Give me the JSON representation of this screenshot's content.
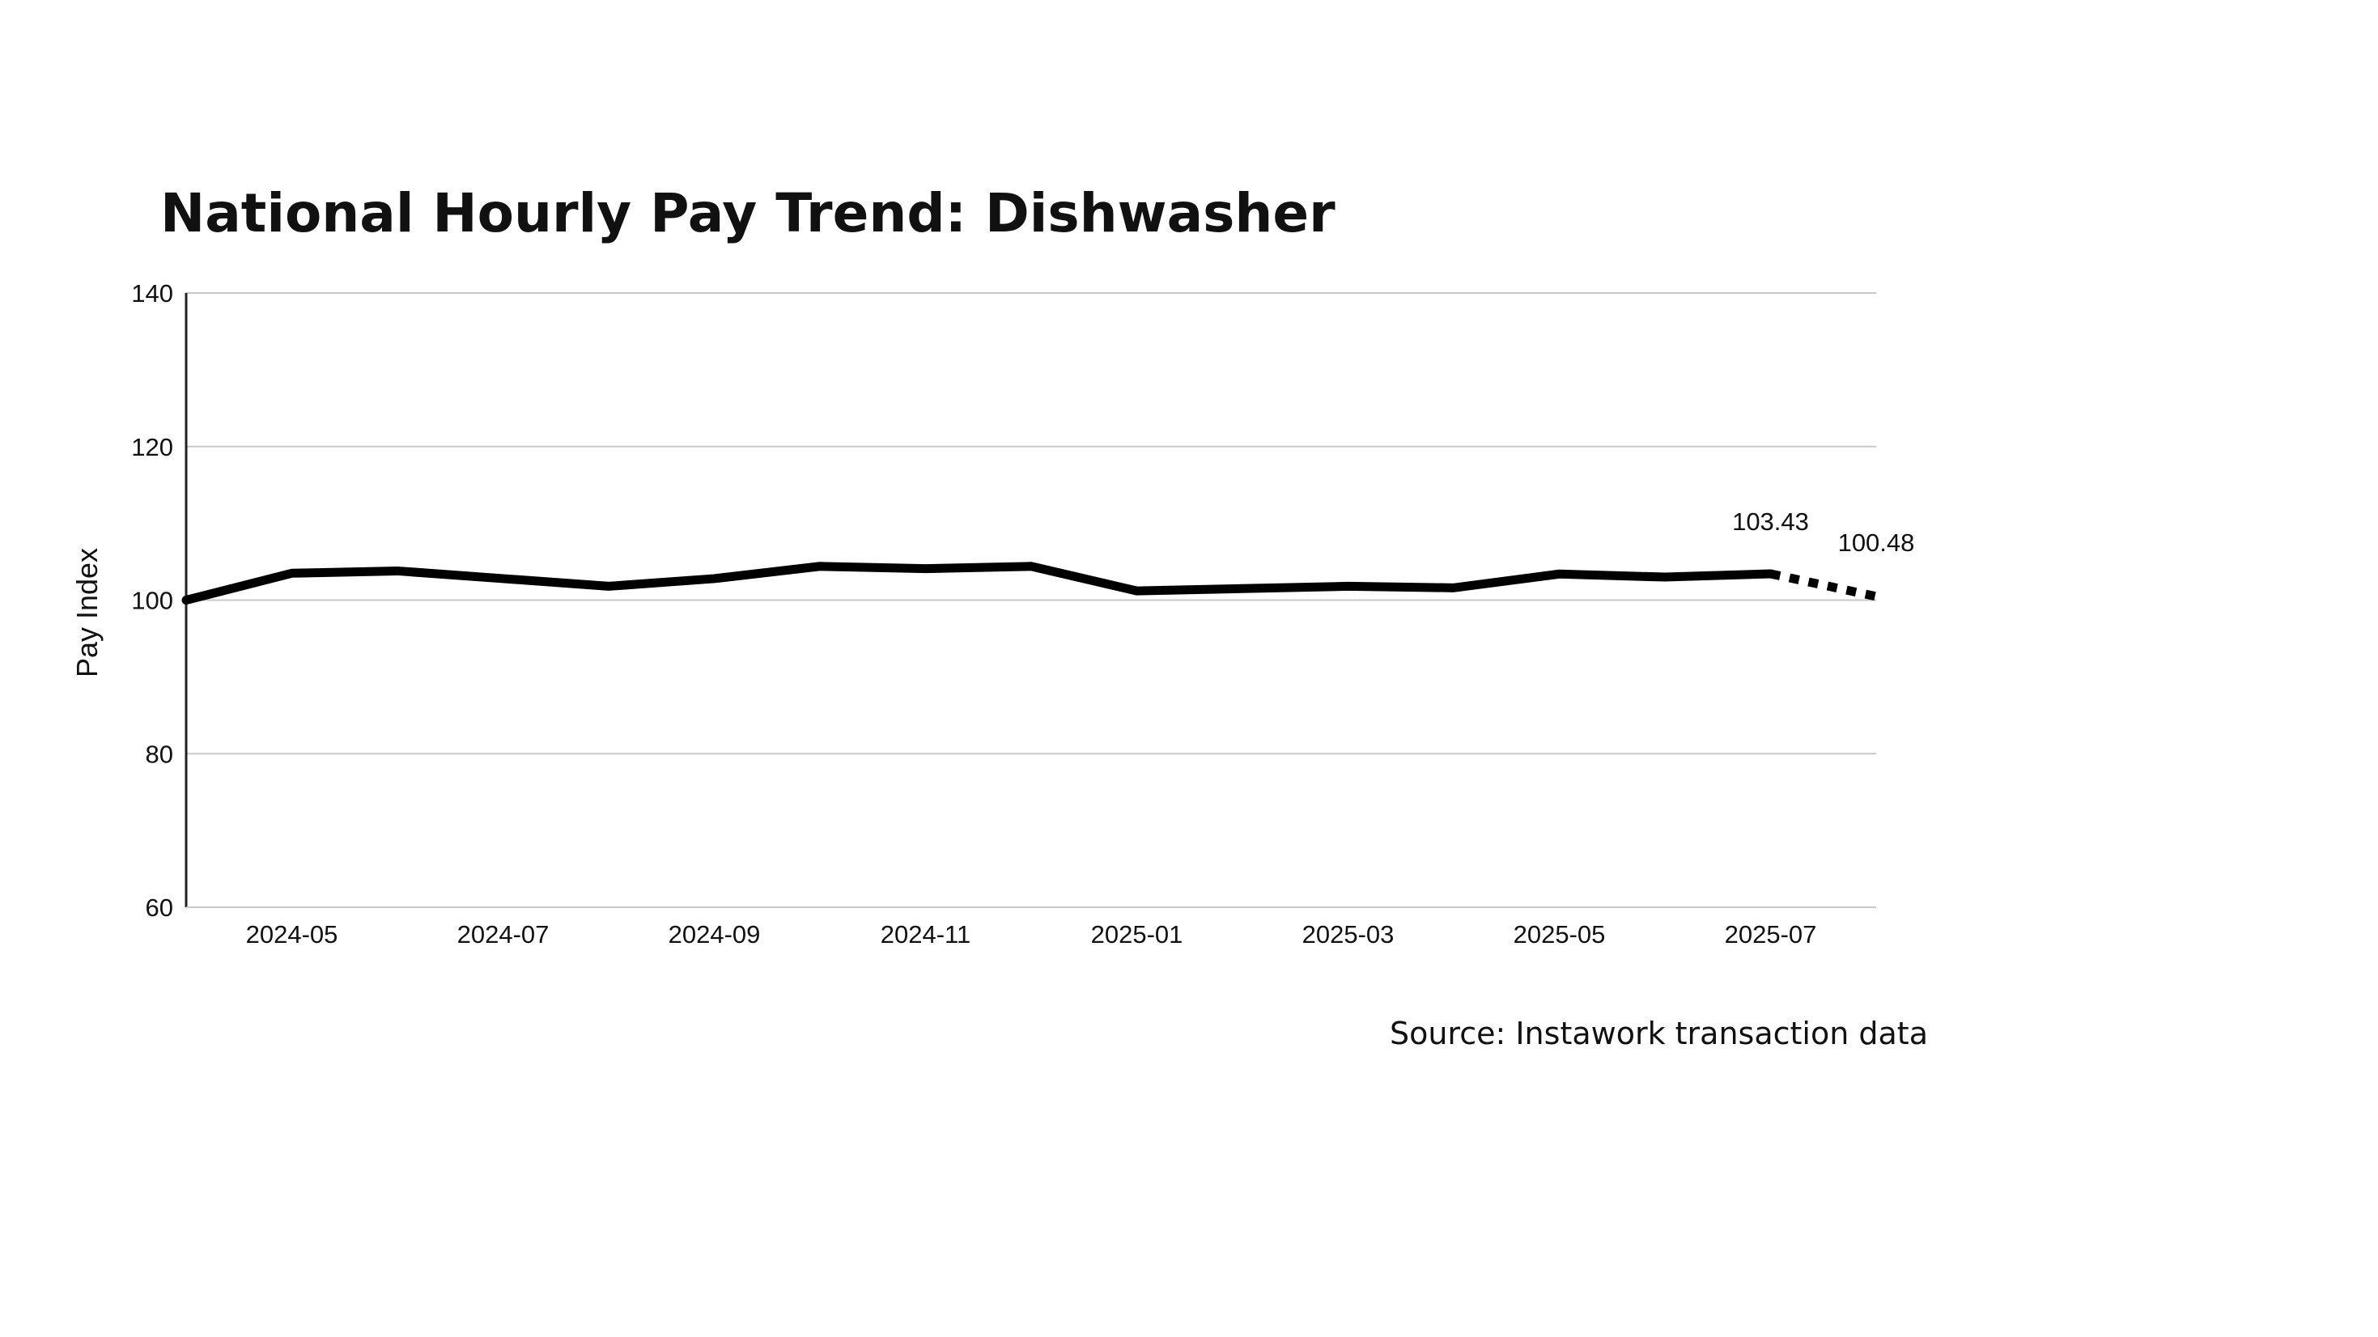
{
  "chart_data": {
    "type": "line",
    "title": "National Hourly Pay Trend: Dishwasher",
    "ylabel": "Pay Index",
    "xlabel": "",
    "ylim": [
      60,
      140
    ],
    "yticks": [
      60,
      80,
      100,
      120,
      140
    ],
    "grid": true,
    "x": [
      "2024-04",
      "2024-05",
      "2024-06",
      "2024-07",
      "2024-08",
      "2024-09",
      "2024-10",
      "2024-11",
      "2024-12",
      "2025-01",
      "2025-02",
      "2025-03",
      "2025-04",
      "2025-05",
      "2025-06",
      "2025-07",
      "2025-08"
    ],
    "xtick_labels": [
      "2024-05",
      "2024-07",
      "2024-09",
      "2024-11",
      "2025-01",
      "2025-03",
      "2025-05",
      "2025-07"
    ],
    "series": [
      {
        "values": [
          100.0,
          103.5,
          103.8,
          102.8,
          101.8,
          102.8,
          104.4,
          104.1,
          104.4,
          101.2,
          101.5,
          101.8,
          101.6,
          103.4,
          103.0,
          103.43,
          100.48
        ],
        "style": "solid, last segment dotted (projection)",
        "color": "#000000"
      }
    ],
    "annotations": [
      {
        "x": "2025-07",
        "y": 103.43,
        "text": "103.43"
      },
      {
        "x": "2025-08",
        "y": 100.48,
        "text": "100.48"
      }
    ],
    "source": "Source: Instawork transaction data"
  }
}
